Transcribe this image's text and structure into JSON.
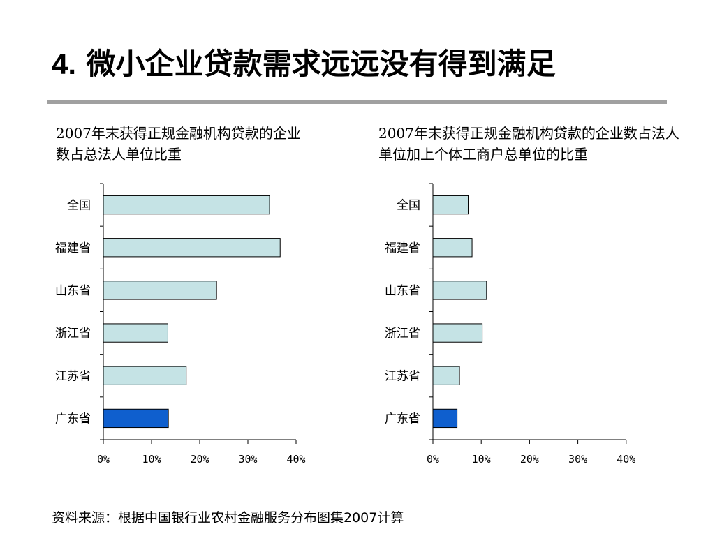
{
  "title": {
    "number": "4.",
    "text": "微小企业贷款需求远远没有得到满足"
  },
  "colors": {
    "bar_fill": "#c5e3e5",
    "highlight_fill": "#0f5fce",
    "bar_stroke": "#000000",
    "rule": "#a0a0a0"
  },
  "chart_data": [
    {
      "type": "bar",
      "orientation": "horizontal",
      "title": "2007年末获得正规金融机构贷款的企业数占总法人单位比重",
      "categories": [
        "全国",
        "福建省",
        "山东省",
        "浙江省",
        "江苏省",
        "广东省"
      ],
      "values": [
        0.345,
        0.367,
        0.235,
        0.134,
        0.172,
        0.135
      ],
      "highlight_category": "广东省",
      "xlim": [
        0,
        0.4
      ],
      "xticks": [
        "0%",
        "10%",
        "20%",
        "30%",
        "40%"
      ],
      "grid": false,
      "legend": "none"
    },
    {
      "type": "bar",
      "orientation": "horizontal",
      "title": "2007年末获得正规金融机构贷款的企业数占法人单位加上个体工商户总单位的比重",
      "categories": [
        "全国",
        "福建省",
        "山东省",
        "浙江省",
        "江苏省",
        "广东省"
      ],
      "values": [
        0.073,
        0.081,
        0.111,
        0.102,
        0.055,
        0.05
      ],
      "highlight_category": "广东省",
      "xlim": [
        0,
        0.4
      ],
      "xticks": [
        "0%",
        "10%",
        "20%",
        "30%",
        "40%"
      ],
      "grid": false,
      "legend": "none"
    }
  ],
  "source": "资料来源：根据中国银行业农村金融服务分布图集2007计算"
}
